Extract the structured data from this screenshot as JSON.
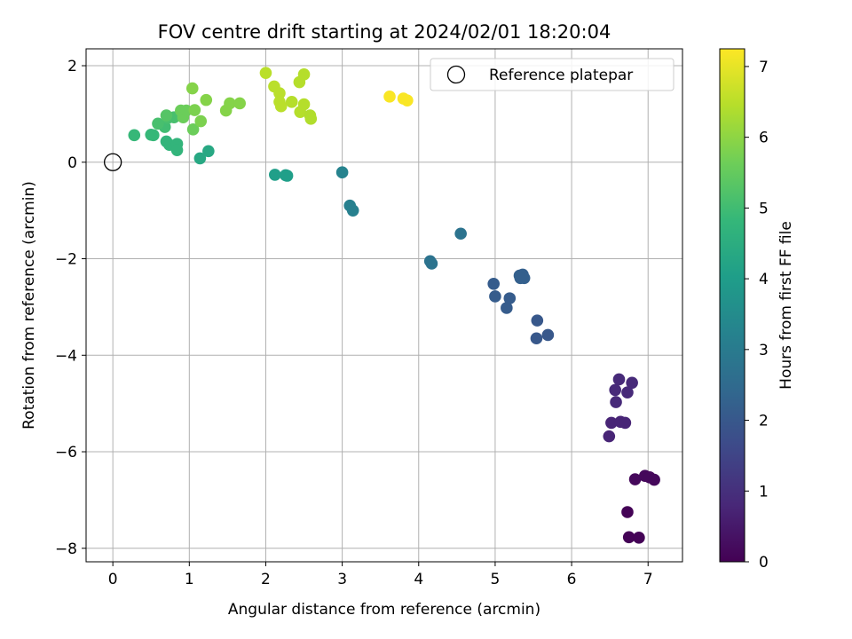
{
  "chart_data": {
    "type": "scatter",
    "title": "FOV centre drift starting at 2024/02/01 18:20:04",
    "xlabel": "Angular distance from reference (arcmin)",
    "ylabel": "Rotation from reference (arcmin)",
    "xlim": [
      -0.35,
      7.45
    ],
    "ylim": [
      -8.28,
      2.35
    ],
    "xticks": [
      0,
      1,
      2,
      3,
      4,
      5,
      6,
      7
    ],
    "xtick_labels": [
      "0",
      "1",
      "2",
      "3",
      "4",
      "5",
      "6",
      "7"
    ],
    "yticks": [
      2,
      0,
      -2,
      -4,
      -6,
      -8
    ],
    "ytick_labels": [
      "2",
      "0",
      "−2",
      "−4",
      "−6",
      "−8"
    ],
    "grid": true,
    "legend": {
      "position": "top-right",
      "entries": [
        "Reference platepar"
      ]
    },
    "colorbar": {
      "label": "Hours from first FF file",
      "range": [
        0,
        7.25
      ],
      "ticks": [
        0,
        1,
        2,
        3,
        4,
        5,
        6,
        7
      ],
      "tick_labels": [
        "0",
        "1",
        "2",
        "3",
        "4",
        "5",
        "6",
        "7"
      ],
      "colormap": "viridis"
    },
    "reference_point": {
      "name": "Reference platepar",
      "x": 0,
      "y": 0
    },
    "series": [
      {
        "points": [
          {
            "x": 6.73,
            "y": -7.25,
            "c": 0.05
          },
          {
            "x": 6.75,
            "y": -7.77,
            "c": 0.05
          },
          {
            "x": 6.88,
            "y": -7.78,
            "c": 0.05
          },
          {
            "x": 6.83,
            "y": -6.57,
            "c": 0.15
          },
          {
            "x": 6.96,
            "y": -6.5,
            "c": 0.15
          },
          {
            "x": 7.02,
            "y": -6.53,
            "c": 0.15
          },
          {
            "x": 7.08,
            "y": -6.58,
            "c": 0.15
          },
          {
            "x": 6.49,
            "y": -5.68,
            "c": 0.75
          },
          {
            "x": 6.52,
            "y": -5.4,
            "c": 0.75
          },
          {
            "x": 6.64,
            "y": -5.38,
            "c": 0.75
          },
          {
            "x": 6.7,
            "y": -5.4,
            "c": 0.75
          },
          {
            "x": 6.58,
            "y": -4.97,
            "c": 0.85
          },
          {
            "x": 6.57,
            "y": -4.72,
            "c": 0.85
          },
          {
            "x": 6.73,
            "y": -4.77,
            "c": 0.85
          },
          {
            "x": 6.62,
            "y": -4.5,
            "c": 0.85
          },
          {
            "x": 6.79,
            "y": -4.57,
            "c": 0.85
          },
          {
            "x": 5.55,
            "y": -3.28,
            "c": 2.0
          },
          {
            "x": 5.54,
            "y": -3.65,
            "c": 2.0
          },
          {
            "x": 5.69,
            "y": -3.58,
            "c": 2.0
          },
          {
            "x": 4.98,
            "y": -2.52,
            "c": 2.1
          },
          {
            "x": 5.0,
            "y": -2.78,
            "c": 2.1
          },
          {
            "x": 5.15,
            "y": -3.02,
            "c": 2.1
          },
          {
            "x": 5.19,
            "y": -2.82,
            "c": 2.1
          },
          {
            "x": 5.32,
            "y": -2.35,
            "c": 2.2
          },
          {
            "x": 5.36,
            "y": -2.33,
            "c": 2.2
          },
          {
            "x": 5.38,
            "y": -2.4,
            "c": 2.2
          },
          {
            "x": 5.33,
            "y": -2.4,
            "c": 2.2
          },
          {
            "x": 4.55,
            "y": -1.48,
            "c": 2.75
          },
          {
            "x": 4.15,
            "y": -2.05,
            "c": 2.75
          },
          {
            "x": 4.17,
            "y": -2.1,
            "c": 2.75
          },
          {
            "x": 3.1,
            "y": -0.9,
            "c": 3.15
          },
          {
            "x": 3.14,
            "y": -1.0,
            "c": 3.15
          },
          {
            "x": 3.0,
            "y": -0.21,
            "c": 3.25
          },
          {
            "x": 2.12,
            "y": -0.26,
            "c": 4.05
          },
          {
            "x": 2.26,
            "y": -0.27,
            "c": 4.05
          },
          {
            "x": 2.28,
            "y": -0.28,
            "c": 4.05
          },
          {
            "x": 1.14,
            "y": 0.08,
            "c": 4.35
          },
          {
            "x": 1.25,
            "y": 0.23,
            "c": 4.35
          },
          {
            "x": 0.28,
            "y": 0.56,
            "c": 4.85
          },
          {
            "x": 0.5,
            "y": 0.57,
            "c": 4.85
          },
          {
            "x": 0.53,
            "y": 0.56,
            "c": 4.85
          },
          {
            "x": 0.7,
            "y": 0.43,
            "c": 4.75
          },
          {
            "x": 0.74,
            "y": 0.36,
            "c": 4.75
          },
          {
            "x": 0.84,
            "y": 0.38,
            "c": 4.75
          },
          {
            "x": 0.84,
            "y": 0.25,
            "c": 4.75
          },
          {
            "x": 0.68,
            "y": 0.73,
            "c": 5.0
          },
          {
            "x": 0.59,
            "y": 0.8,
            "c": 5.1
          },
          {
            "x": 0.72,
            "y": 0.92,
            "c": 5.1
          },
          {
            "x": 0.8,
            "y": 0.93,
            "c": 5.1
          },
          {
            "x": 0.7,
            "y": 0.97,
            "c": 5.3
          },
          {
            "x": 0.89,
            "y": 1.07,
            "c": 5.6
          },
          {
            "x": 0.92,
            "y": 0.93,
            "c": 5.6
          },
          {
            "x": 0.96,
            "y": 1.07,
            "c": 5.6
          },
          {
            "x": 1.05,
            "y": 0.68,
            "c": 5.6
          },
          {
            "x": 1.07,
            "y": 1.08,
            "c": 5.8
          },
          {
            "x": 1.15,
            "y": 0.85,
            "c": 5.8
          },
          {
            "x": 1.04,
            "y": 1.53,
            "c": 5.9
          },
          {
            "x": 1.22,
            "y": 1.29,
            "c": 5.9
          },
          {
            "x": 1.48,
            "y": 1.07,
            "c": 5.9
          },
          {
            "x": 1.53,
            "y": 1.22,
            "c": 5.9
          },
          {
            "x": 1.66,
            "y": 1.22,
            "c": 5.9
          },
          {
            "x": 2.0,
            "y": 1.85,
            "c": 6.5
          },
          {
            "x": 2.11,
            "y": 1.57,
            "c": 6.5
          },
          {
            "x": 2.18,
            "y": 1.43,
            "c": 6.5
          },
          {
            "x": 2.18,
            "y": 1.25,
            "c": 6.5
          },
          {
            "x": 2.2,
            "y": 1.16,
            "c": 6.5
          },
          {
            "x": 2.34,
            "y": 1.25,
            "c": 6.45
          },
          {
            "x": 2.44,
            "y": 1.66,
            "c": 6.45
          },
          {
            "x": 2.5,
            "y": 1.82,
            "c": 6.45
          },
          {
            "x": 2.45,
            "y": 1.04,
            "c": 6.45
          },
          {
            "x": 2.5,
            "y": 1.2,
            "c": 6.45
          },
          {
            "x": 2.58,
            "y": 0.97,
            "c": 6.4
          },
          {
            "x": 2.59,
            "y": 0.9,
            "c": 6.4
          },
          {
            "x": 3.62,
            "y": 1.36,
            "c": 7.2
          },
          {
            "x": 3.8,
            "y": 1.32,
            "c": 7.2
          },
          {
            "x": 3.85,
            "y": 1.28,
            "c": 7.2
          }
        ]
      }
    ]
  }
}
